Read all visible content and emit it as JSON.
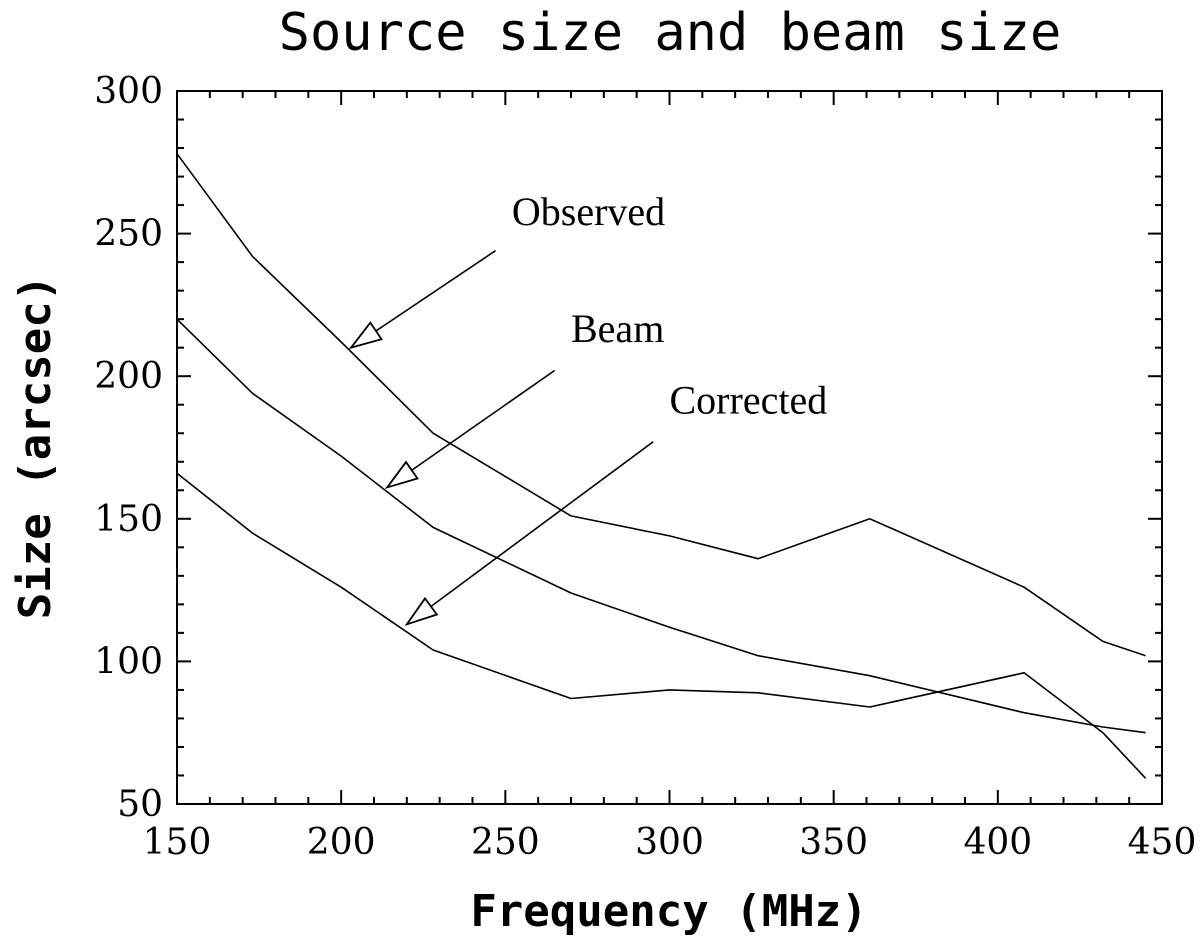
{
  "chart_data": {
    "type": "line",
    "title": "Source size and beam size",
    "xlabel": "Frequency (MHz)",
    "ylabel": "Size (arcsec)",
    "xlim": [
      150,
      450
    ],
    "ylim": [
      50,
      300
    ],
    "x_ticks": [
      150,
      200,
      250,
      300,
      350,
      400,
      450
    ],
    "y_ticks": [
      50,
      100,
      150,
      200,
      250,
      300
    ],
    "grid": false,
    "series": [
      {
        "name": "Observed",
        "x": [
          150,
          173,
          200,
          228,
          270,
          300,
          327,
          361,
          408,
          432,
          445
        ],
        "y": [
          278,
          242,
          212,
          180,
          151,
          144,
          136,
          150,
          126,
          107,
          102
        ]
      },
      {
        "name": "Beam",
        "x": [
          150,
          173,
          200,
          228,
          270,
          300,
          327,
          361,
          408,
          432,
          445
        ],
        "y": [
          220,
          194,
          172,
          147,
          124,
          112,
          102,
          95,
          82,
          77,
          75
        ]
      },
      {
        "name": "Corrected",
        "x": [
          150,
          173,
          200,
          228,
          270,
          300,
          327,
          361,
          408,
          432,
          445
        ],
        "y": [
          166,
          145,
          126,
          104,
          87,
          90,
          89,
          84,
          96,
          75,
          59
        ]
      }
    ],
    "annotations": [
      {
        "text": "Observed",
        "text_at": [
          252,
          253
        ],
        "arrow_from": [
          247,
          244
        ],
        "arrow_to": [
          203,
          210
        ]
      },
      {
        "text": "Beam",
        "text_at": [
          270,
          212
        ],
        "arrow_from": [
          265,
          202
        ],
        "arrow_to": [
          214,
          161
        ]
      },
      {
        "text": "Corrected",
        "text_at": [
          300,
          187
        ],
        "arrow_from": [
          295,
          177
        ],
        "arrow_to": [
          220,
          113
        ]
      }
    ]
  }
}
